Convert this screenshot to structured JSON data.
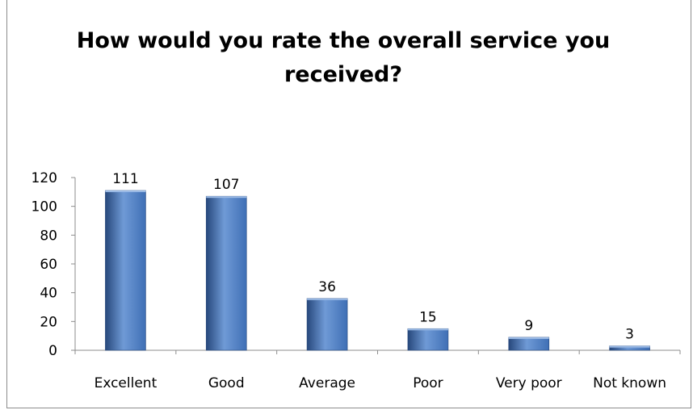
{
  "chart_data": {
    "type": "bar",
    "title": "How would you rate the overall service you received?",
    "categories": [
      "Excellent",
      "Good",
      "Average",
      "Poor",
      "Very poor",
      "Not known"
    ],
    "values": [
      111,
      107,
      36,
      15,
      9,
      3
    ],
    "data_labels": [
      "111",
      "107",
      "36",
      "15",
      "9",
      "3"
    ],
    "ylim": [
      0,
      120
    ],
    "yticks": [
      0,
      20,
      40,
      60,
      80,
      100,
      120
    ],
    "grid": false,
    "legend": "none",
    "bar_color": "#3f6fb5",
    "bar_color_light": "#6f9ad6",
    "bar_color_dark": "#27487c"
  }
}
